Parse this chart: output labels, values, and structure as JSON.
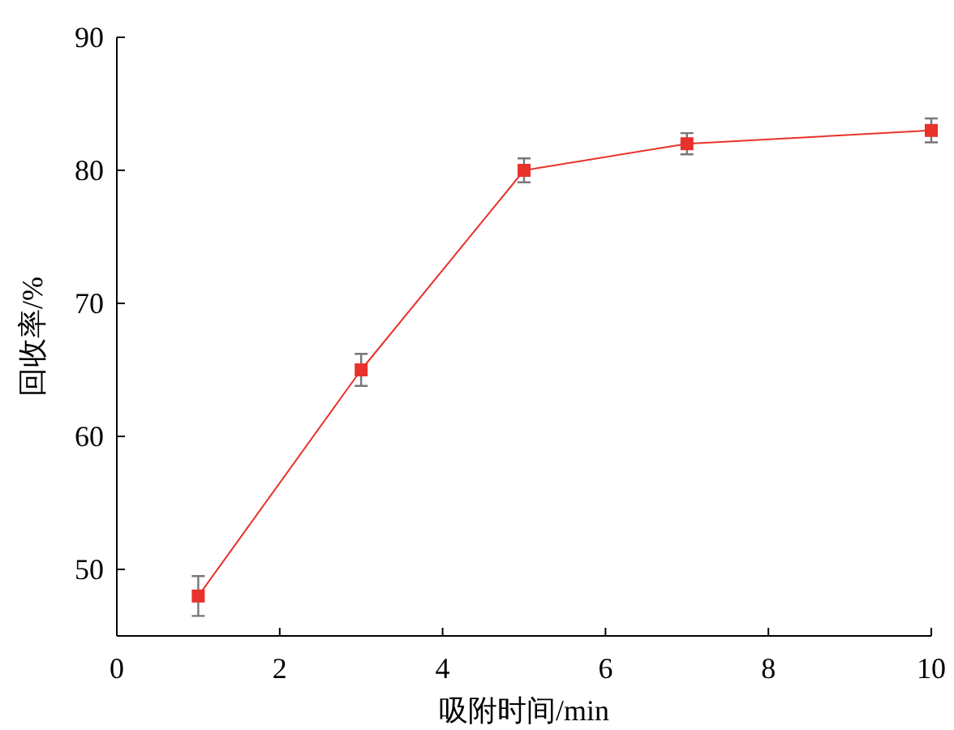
{
  "chart_data": {
    "type": "line",
    "xlabel": "吸附时间/min",
    "ylabel": "回收率/%",
    "x": [
      1,
      3,
      5,
      7,
      10
    ],
    "series": [
      {
        "color": "#e8322b",
        "values": [
          48,
          65,
          80,
          82,
          83
        ],
        "errors": [
          1.5,
          1.2,
          0.9,
          0.8,
          0.9
        ]
      }
    ],
    "xlim": [
      0,
      10
    ],
    "ylim": [
      45,
      90
    ],
    "xticks": [
      0,
      2,
      4,
      6,
      8,
      10
    ],
    "yticks": [
      50,
      60,
      70,
      80,
      90
    ],
    "marker": "square",
    "line_style": "solid",
    "grid": false
  }
}
